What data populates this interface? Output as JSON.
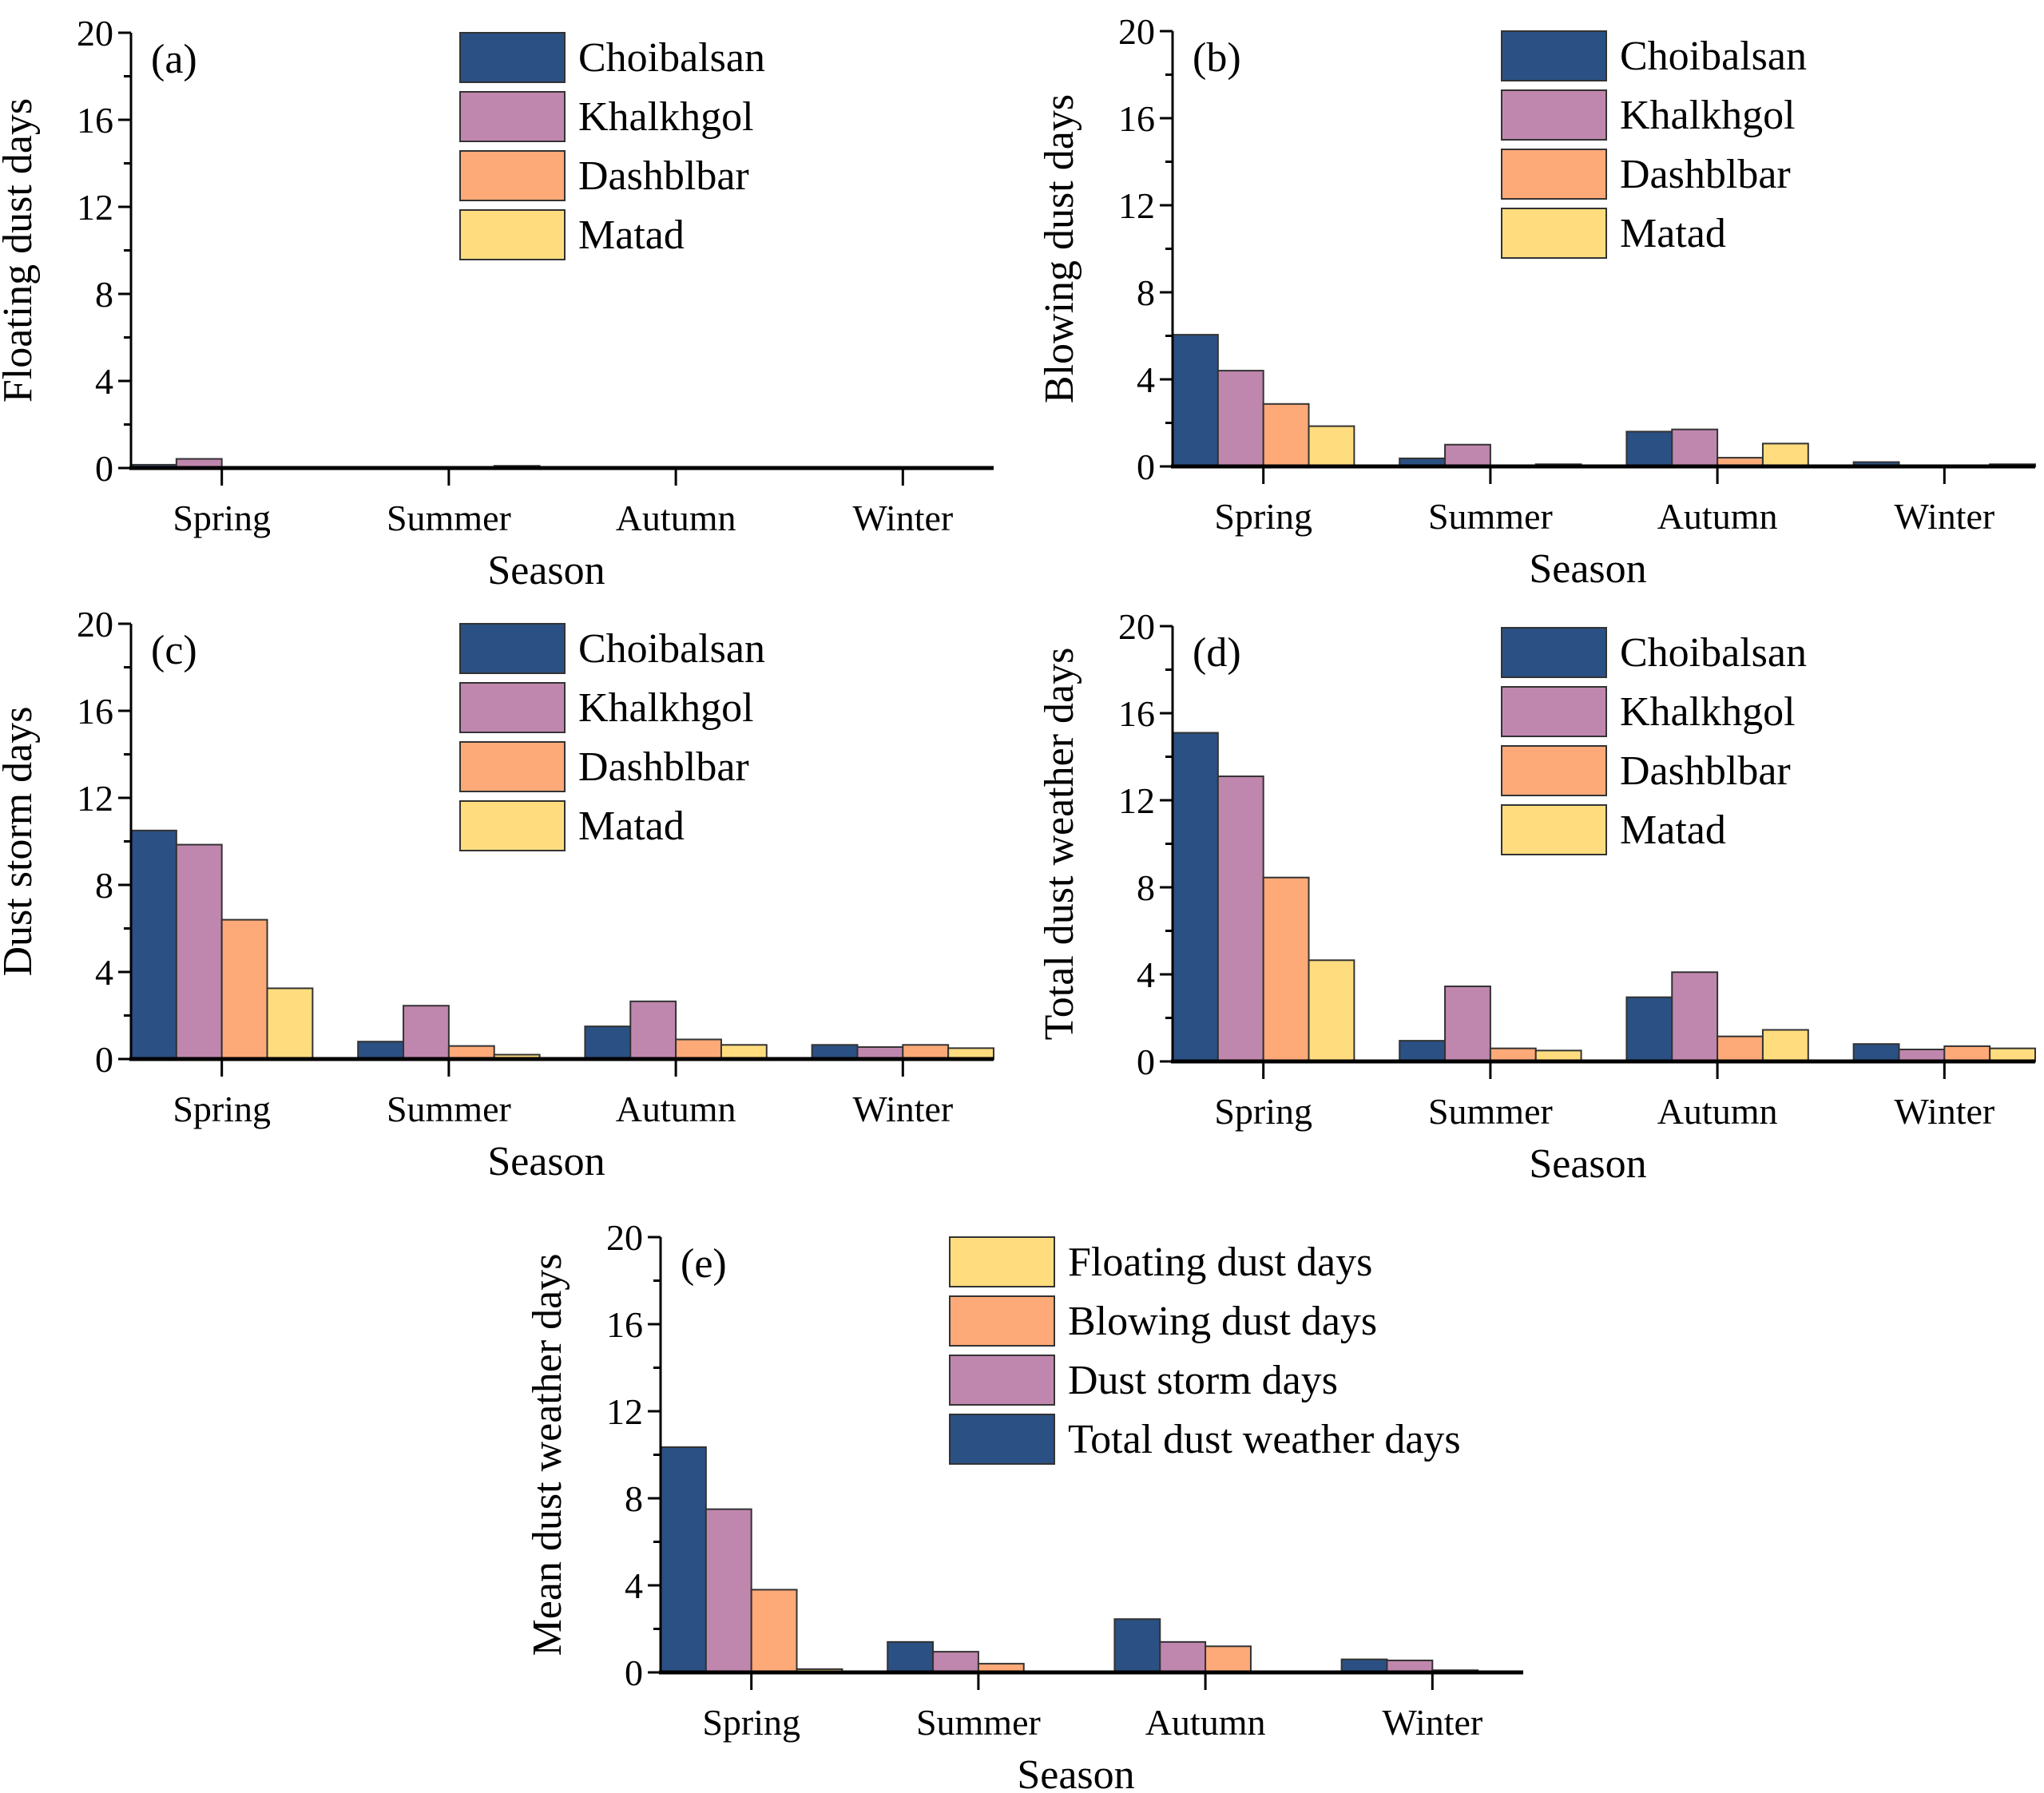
{
  "colors": {
    "navy": "#2b5083",
    "purple": "#c087ae",
    "orange": "#fdaa78",
    "yellow": "#ffdd7f"
  },
  "chart_data": [
    {
      "type": "bar",
      "panel": "(a)",
      "ylabel": "Floating dust days",
      "xlabel": "Season",
      "ylim": [
        0,
        20
      ],
      "yticks": [
        "0",
        "4",
        "8",
        "12",
        "16",
        "20"
      ],
      "categories": [
        "Spring",
        "Summer",
        "Autumn",
        "Winter"
      ],
      "series": [
        {
          "name": "Choibalsan",
          "color": "navy",
          "values": [
            0.15,
            0,
            0,
            0
          ]
        },
        {
          "name": "Khalkhgol",
          "color": "purple",
          "values": [
            0.42,
            0,
            0,
            0
          ]
        },
        {
          "name": "Dashblbar",
          "color": "orange",
          "values": [
            0,
            0,
            0,
            0
          ]
        },
        {
          "name": "Matad",
          "color": "yellow",
          "values": [
            0,
            0.1,
            0,
            0
          ]
        }
      ]
    },
    {
      "type": "bar",
      "panel": "(b)",
      "ylabel": "Blowing dust days",
      "xlabel": "Season",
      "ylim": [
        0,
        20
      ],
      "yticks": [
        "0",
        "4",
        "8",
        "12",
        "16",
        "20"
      ],
      "categories": [
        "Spring",
        "Summer",
        "Autumn",
        "Winter"
      ],
      "series": [
        {
          "name": "Choibalsan",
          "color": "navy",
          "values": [
            6.05,
            0.37,
            1.6,
            0.2
          ]
        },
        {
          "name": "Khalkhgol",
          "color": "purple",
          "values": [
            4.4,
            1.0,
            1.7,
            0
          ]
        },
        {
          "name": "Dashblbar",
          "color": "orange",
          "values": [
            2.87,
            0,
            0.4,
            0
          ]
        },
        {
          "name": "Matad",
          "color": "yellow",
          "values": [
            1.85,
            0.1,
            1.05,
            0.1
          ]
        }
      ]
    },
    {
      "type": "bar",
      "panel": "(c)",
      "ylabel": "Dust storm days",
      "xlabel": "Season",
      "ylim": [
        0,
        20
      ],
      "yticks": [
        "0",
        "4",
        "8",
        "12",
        "16",
        "20"
      ],
      "categories": [
        "Spring",
        "Summer",
        "Autumn",
        "Winter"
      ],
      "series": [
        {
          "name": "Choibalsan",
          "color": "navy",
          "values": [
            10.5,
            0.8,
            1.5,
            0.65
          ]
        },
        {
          "name": "Khalkhgol",
          "color": "purple",
          "values": [
            9.85,
            2.45,
            2.65,
            0.55
          ]
        },
        {
          "name": "Dashblbar",
          "color": "orange",
          "values": [
            6.4,
            0.6,
            0.9,
            0.65
          ]
        },
        {
          "name": "Matad",
          "color": "yellow",
          "values": [
            3.25,
            0.2,
            0.65,
            0.5
          ]
        }
      ]
    },
    {
      "type": "bar",
      "panel": "(d)",
      "ylabel": "Total dust weather days",
      "xlabel": "Season",
      "ylim": [
        0,
        20
      ],
      "yticks": [
        "0",
        "4",
        "8",
        "12",
        "16",
        "20"
      ],
      "categories": [
        "Spring",
        "Summer",
        "Autumn",
        "Winter"
      ],
      "series": [
        {
          "name": "Choibalsan",
          "color": "navy",
          "values": [
            15.1,
            0.95,
            2.95,
            0.8
          ]
        },
        {
          "name": "Khalkhgol",
          "color": "purple",
          "values": [
            13.1,
            3.45,
            4.1,
            0.55
          ]
        },
        {
          "name": "Dashblbar",
          "color": "orange",
          "values": [
            8.45,
            0.6,
            1.15,
            0.7
          ]
        },
        {
          "name": "Matad",
          "color": "yellow",
          "values": [
            4.65,
            0.5,
            1.45,
            0.6
          ]
        }
      ]
    },
    {
      "type": "bar",
      "panel": "(e)",
      "ylabel": "Mean dust weather days",
      "xlabel": "Season",
      "ylim": [
        0,
        20
      ],
      "yticks": [
        "0",
        "4",
        "8",
        "12",
        "16",
        "20"
      ],
      "categories": [
        "Spring",
        "Summer",
        "Autumn",
        "Winter"
      ],
      "legend_order": [
        3,
        2,
        1,
        0
      ],
      "series": [
        {
          "name": "Total dust weather days",
          "color": "navy",
          "values": [
            10.35,
            1.4,
            2.45,
            0.6
          ]
        },
        {
          "name": "Dust storm days",
          "color": "purple",
          "values": [
            7.5,
            0.95,
            1.4,
            0.55
          ]
        },
        {
          "name": "Blowing dust days",
          "color": "orange",
          "values": [
            3.8,
            0.4,
            1.2,
            0.1
          ]
        },
        {
          "name": "Floating dust days",
          "color": "yellow",
          "values": [
            0.15,
            0,
            0,
            0
          ]
        }
      ]
    }
  ]
}
